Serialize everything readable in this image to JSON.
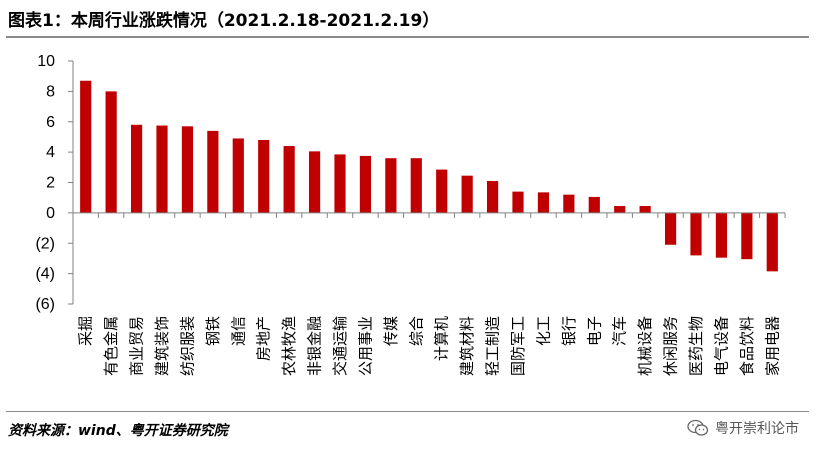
{
  "title": "图表1：本周行业涨跌情况（2021.2.18-2021.2.19）",
  "source": "资料来源：wind、粤开证券研究院",
  "watermark": "粤开崇利论市",
  "colors": {
    "bar": "#c00000",
    "axis": "#808080",
    "rule": "#8a8a8a"
  },
  "chart_data": {
    "type": "bar",
    "title": "图表1：本周行业涨跌情况（2021.2.18-2021.2.19）",
    "xlabel": "",
    "ylabel": "",
    "ylim": [
      -6,
      10
    ],
    "yticks": [
      10,
      8,
      6,
      4,
      2,
      0,
      -2,
      -4,
      -6
    ],
    "ytick_labels": [
      "10",
      "8",
      "6",
      "4",
      "2",
      "0",
      "(2)",
      "(4)",
      "(6)"
    ],
    "grid": false,
    "legend": "none",
    "categories": [
      "采掘",
      "有色金属",
      "商业贸易",
      "建筑装饰",
      "纺织服装",
      "钢铁",
      "通信",
      "房地产",
      "农林牧渔",
      "非银金融",
      "交通运输",
      "公用事业",
      "传媒",
      "综合",
      "计算机",
      "建筑材料",
      "轻工制造",
      "国防军工",
      "化工",
      "银行",
      "电子",
      "汽车",
      "机械设备",
      "休闲服务",
      "医药生物",
      "电气设备",
      "食品饮料",
      "家用电器"
    ],
    "values": [
      8.7,
      8.0,
      5.8,
      5.75,
      5.7,
      5.4,
      4.9,
      4.8,
      4.4,
      4.05,
      3.85,
      3.75,
      3.6,
      3.6,
      2.85,
      2.45,
      2.1,
      1.4,
      1.35,
      1.2,
      1.05,
      0.45,
      0.45,
      -2.1,
      -2.8,
      -2.95,
      -3.05,
      -3.85
    ]
  }
}
